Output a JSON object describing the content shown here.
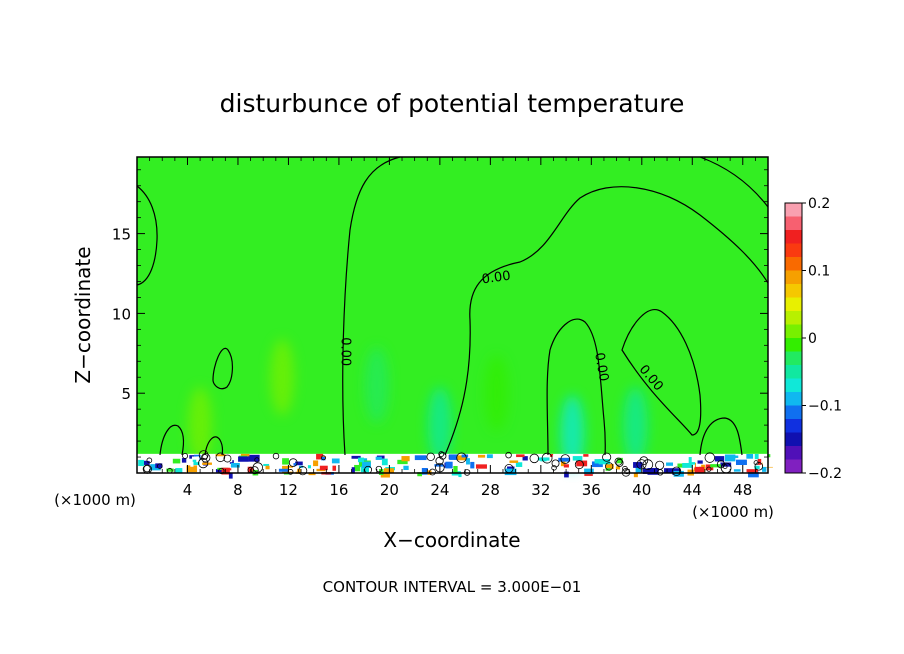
{
  "chart_data": {
    "type": "heatmap",
    "title": "disturbunce of potential temperature",
    "xlabel": "X−coordinate",
    "ylabel": "Z−coordinate",
    "x_unit": "(×1000 m)",
    "y_unit": "(×1000 m)",
    "xlim": [
      0,
      50
    ],
    "ylim": [
      0,
      19.8
    ],
    "x_ticks": [
      4,
      8,
      12,
      16,
      20,
      24,
      28,
      32,
      36,
      40,
      44,
      48
    ],
    "x_tick_labels": [
      "4",
      "8",
      "12",
      "16",
      "20",
      "24",
      "28",
      "32",
      "36",
      "40",
      "44",
      "48"
    ],
    "y_ticks": [
      5,
      10,
      15
    ],
    "y_tick_labels": [
      "5",
      "10",
      "15"
    ],
    "footer": "CONTOUR INTERVAL = 3.000E−01",
    "contour_labels": [
      {
        "text": "0.00",
        "x": 28.5,
        "y": 12.0,
        "rotate": -8
      },
      {
        "text": "0.00",
        "x": 16.2,
        "y": 7.6,
        "rotate": 90
      },
      {
        "text": "0.00",
        "x": 36.5,
        "y": 6.6,
        "rotate": 80
      },
      {
        "text": "0.00",
        "x": 40.5,
        "y": 5.8,
        "rotate": 50
      }
    ],
    "colorbar": {
      "min": -0.2,
      "max": 0.2,
      "tick_values": [
        0.2,
        0.1,
        0,
        -0.1,
        -0.2
      ],
      "tick_labels": [
        "0.2",
        "0.1",
        "0",
        "−0.1",
        "−0.2"
      ],
      "colors": [
        "#f9a0b0",
        "#f76070",
        "#f02020",
        "#fa3a10",
        "#f96a00",
        "#f6a000",
        "#f5c800",
        "#e8f000",
        "#b8f000",
        "#78f000",
        "#33ee00",
        "#22ea60",
        "#11e8a0",
        "#10e8d8",
        "#10b8f0",
        "#1070f0",
        "#1030e0",
        "#1010b0",
        "#5010b8",
        "#8020c0"
      ]
    },
    "background_value": 0.0,
    "background_color": "#33ee22",
    "cool_patches": [
      {
        "x": 19.0,
        "y": 5.5,
        "value": -0.03
      },
      {
        "x": 24.0,
        "y": 3.0,
        "value": -0.05
      },
      {
        "x": 34.5,
        "y": 2.5,
        "value": -0.06
      },
      {
        "x": 39.5,
        "y": 3.0,
        "value": -0.04
      },
      {
        "x": 28.5,
        "y": 5.0,
        "value": -0.02
      }
    ],
    "warm_patches": [
      {
        "x": 11.5,
        "y": 6.0,
        "value": 0.02
      },
      {
        "x": 5.0,
        "y": 3.0,
        "value": 0.02
      }
    ]
  }
}
